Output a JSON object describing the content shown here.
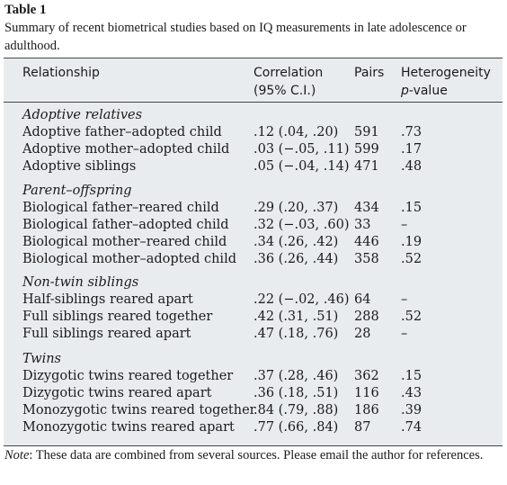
{
  "table": {
    "label": "Table 1",
    "caption": "Summary of recent biometrical studies based on IQ measurements in late adolescence or adulthood.",
    "headers": {
      "relationship": "Relationship",
      "correlation_line1": "Correlation",
      "correlation_line2": "(95% C.I.)",
      "pairs": "Pairs",
      "heterogeneity_line1": "Heterogeneity",
      "heterogeneity_line2_italic": "p",
      "heterogeneity_line2_rest": "-value"
    },
    "sections": [
      {
        "title": "Adoptive relatives",
        "rows": [
          {
            "relationship": "Adoptive father–adopted child",
            "correlation": ".12 (.04, .20)",
            "pairs": "591",
            "p": ".73"
          },
          {
            "relationship": "Adoptive mother–adopted child",
            "correlation": ".03 (−.05, .11)",
            "pairs": "599",
            "p": ".17"
          },
          {
            "relationship": "Adoptive siblings",
            "correlation": ".05 (−.04, .14)",
            "pairs": "471",
            "p": ".48"
          }
        ]
      },
      {
        "title": "Parent–offspring",
        "rows": [
          {
            "relationship": "Biological father–reared child",
            "correlation": ".29 (.20, .37)",
            "pairs": "434",
            "p": ".15"
          },
          {
            "relationship": "Biological father–adopted child",
            "correlation": ".32 (−.03, .60)",
            "pairs": "33",
            "p": "–"
          },
          {
            "relationship": "Biological mother–reared child",
            "correlation": ".34 (.26, .42)",
            "pairs": "446",
            "p": ".19"
          },
          {
            "relationship": "Biological mother–adopted child",
            "correlation": ".36 (.26, .44)",
            "pairs": "358",
            "p": ".52"
          }
        ]
      },
      {
        "title": "Non-twin siblings",
        "rows": [
          {
            "relationship": "Half-siblings reared apart",
            "correlation": ".22 (−.02, .46)",
            "pairs": "64",
            "p": "–"
          },
          {
            "relationship": "Full siblings reared together",
            "correlation": ".42 (.31, .51)",
            "pairs": "288",
            "p": ".52"
          },
          {
            "relationship": "Full siblings reared apart",
            "correlation": ".47 (.18, .76)",
            "pairs": "28",
            "p": "–"
          }
        ]
      },
      {
        "title": "Twins",
        "rows": [
          {
            "relationship": "Dizygotic twins reared together",
            "correlation": ".37 (.28, .46)",
            "pairs": "362",
            "p": ".15"
          },
          {
            "relationship": "Dizygotic twins reared apart",
            "correlation": ".36 (.18, .51)",
            "pairs": "116",
            "p": ".43"
          },
          {
            "relationship": "Monozygotic twins reared together",
            "correlation": ".84 (.79, .88)",
            "pairs": "186",
            "p": ".39"
          },
          {
            "relationship": "Monozygotic twins reared apart",
            "correlation": ".77 (.66, .84)",
            "pairs": "87",
            "p": ".74"
          }
        ]
      }
    ],
    "note_label": "Note",
    "note_text": ": These data are combined from several sources. Please email the author for references."
  }
}
